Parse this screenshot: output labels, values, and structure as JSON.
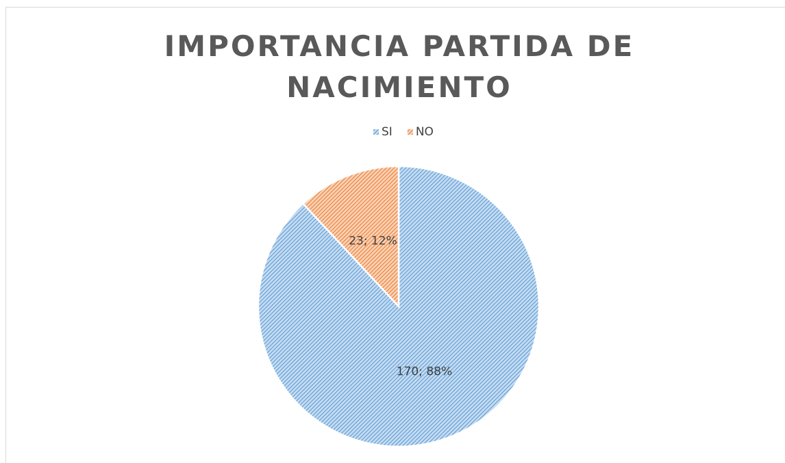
{
  "chart_data": {
    "type": "pie",
    "title": "IMPORTANCIA PARTIDA DE NACIMIENTO",
    "categories": [
      "SI",
      "NO"
    ],
    "values": [
      170,
      23
    ],
    "value_labels": [
      "170; 88%",
      "23; 12%"
    ],
    "colors": [
      "#5b9bd5",
      "#ed7d31"
    ],
    "legend": "top"
  }
}
